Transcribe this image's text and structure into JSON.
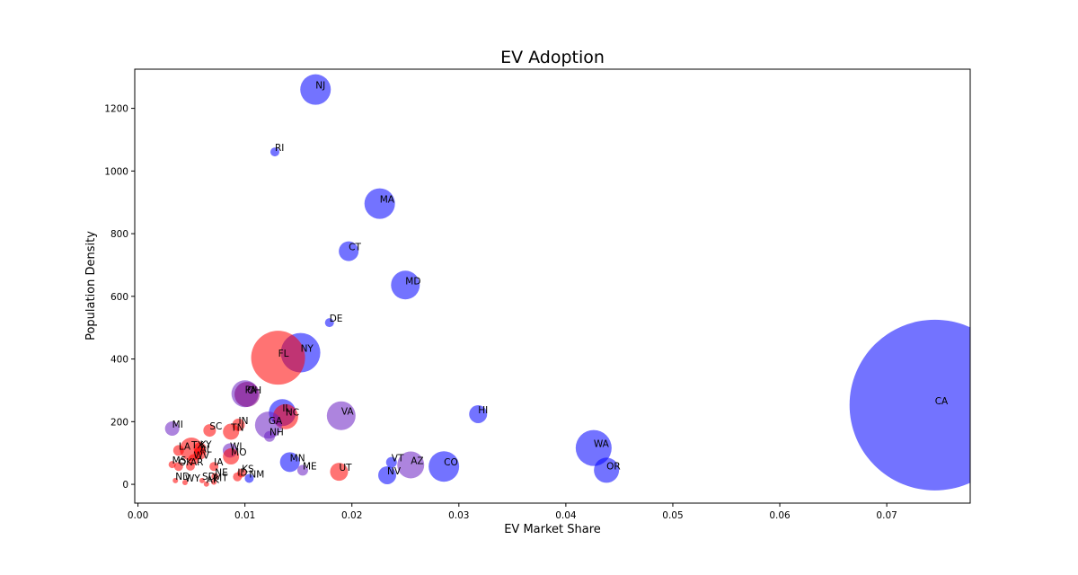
{
  "chart_data": {
    "type": "scatter",
    "title": "EV Adoption",
    "xlabel": "EV Market Share",
    "ylabel": "Population Density",
    "xlim": [
      -0.0003,
      0.0778
    ],
    "ylim": [
      -60,
      1325
    ],
    "xticks": [
      0.0,
      0.01,
      0.02,
      0.03,
      0.04,
      0.05,
      0.06,
      0.07
    ],
    "xtick_labels": [
      "0.00",
      "0.01",
      "0.02",
      "0.03",
      "0.04",
      "0.05",
      "0.06",
      "0.07"
    ],
    "yticks": [
      0,
      200,
      400,
      600,
      800,
      1000,
      1200
    ],
    "ytick_labels": [
      "0",
      "200",
      "400",
      "600",
      "800",
      "1000",
      "1200"
    ],
    "grid": false,
    "legend": "none",
    "colors": {
      "blue": "#0000ff",
      "red": "#ff0000",
      "purple": "#6a1fc2",
      "darkpurple": "#800080"
    },
    "points": [
      {
        "label": "CA",
        "x": 0.0745,
        "y": 253,
        "size": 95,
        "color": "blue"
      },
      {
        "label": "NJ",
        "x": 0.0166,
        "y": 1260,
        "size": 17,
        "color": "blue"
      },
      {
        "label": "RI",
        "x": 0.0128,
        "y": 1061,
        "size": 5,
        "color": "blue"
      },
      {
        "label": "MA",
        "x": 0.0226,
        "y": 896,
        "size": 17,
        "color": "blue"
      },
      {
        "label": "CT",
        "x": 0.0197,
        "y": 744,
        "size": 11,
        "color": "blue"
      },
      {
        "label": "MD",
        "x": 0.025,
        "y": 636,
        "size": 16,
        "color": "blue"
      },
      {
        "label": "DE",
        "x": 0.0179,
        "y": 516,
        "size": 5,
        "color": "blue"
      },
      {
        "label": "NY",
        "x": 0.0152,
        "y": 420,
        "size": 22,
        "color": "blue"
      },
      {
        "label": "FL",
        "x": 0.0131,
        "y": 404,
        "size": 30,
        "color": "red"
      },
      {
        "label": "PA",
        "x": 0.01,
        "y": 289,
        "size": 15,
        "color": "purple"
      },
      {
        "label": "OH",
        "x": 0.0102,
        "y": 287,
        "size": 14,
        "color": "darkpurple"
      },
      {
        "label": "IL",
        "x": 0.0135,
        "y": 229,
        "size": 15,
        "color": "blue"
      },
      {
        "label": "NC",
        "x": 0.0138,
        "y": 216,
        "size": 14,
        "color": "red"
      },
      {
        "label": "VA",
        "x": 0.019,
        "y": 219,
        "size": 16,
        "color": "purple"
      },
      {
        "label": "GA",
        "x": 0.0122,
        "y": 189,
        "size": 15,
        "color": "purple"
      },
      {
        "label": "HI",
        "x": 0.0318,
        "y": 224,
        "size": 10,
        "color": "blue"
      },
      {
        "label": "MI",
        "x": 0.0032,
        "y": 178,
        "size": 8,
        "color": "purple"
      },
      {
        "label": "SC",
        "x": 0.0067,
        "y": 172,
        "size": 7,
        "color": "red"
      },
      {
        "label": "TN",
        "x": 0.0087,
        "y": 168,
        "size": 9,
        "color": "red"
      },
      {
        "label": "IN",
        "x": 0.0094,
        "y": 190,
        "size": 7,
        "color": "red"
      },
      {
        "label": "NH",
        "x": 0.0123,
        "y": 153,
        "size": 6,
        "color": "purple"
      },
      {
        "label": "LA",
        "x": 0.0038,
        "y": 108,
        "size": 6,
        "color": "red"
      },
      {
        "label": "TX",
        "x": 0.005,
        "y": 112,
        "size": 13,
        "color": "red"
      },
      {
        "label": "KY",
        "x": 0.0058,
        "y": 114,
        "size": 7,
        "color": "red"
      },
      {
        "label": "AL",
        "x": 0.0058,
        "y": 99,
        "size": 7,
        "color": "red"
      },
      {
        "label": "WV",
        "x": 0.0052,
        "y": 79,
        "size": 6,
        "color": "red"
      },
      {
        "label": "WI",
        "x": 0.0086,
        "y": 108,
        "size": 8,
        "color": "purple"
      },
      {
        "label": "MO",
        "x": 0.0087,
        "y": 89,
        "size": 9,
        "color": "red"
      },
      {
        "label": "WA",
        "x": 0.0426,
        "y": 116,
        "size": 20,
        "color": "blue"
      },
      {
        "label": "MS",
        "x": 0.0032,
        "y": 63,
        "size": 4,
        "color": "red"
      },
      {
        "label": "OK",
        "x": 0.0038,
        "y": 57,
        "size": 5,
        "color": "red"
      },
      {
        "label": "AR",
        "x": 0.0049,
        "y": 58,
        "size": 5,
        "color": "red"
      },
      {
        "label": "IA",
        "x": 0.0071,
        "y": 57,
        "size": 5,
        "color": "red"
      },
      {
        "label": "MN",
        "x": 0.0142,
        "y": 71,
        "size": 11,
        "color": "blue"
      },
      {
        "label": "ME",
        "x": 0.0154,
        "y": 45,
        "size": 6,
        "color": "purple"
      },
      {
        "label": "UT",
        "x": 0.0188,
        "y": 40,
        "size": 10,
        "color": "red"
      },
      {
        "label": "VT",
        "x": 0.0237,
        "y": 70,
        "size": 6,
        "color": "blue"
      },
      {
        "label": "AZ",
        "x": 0.0255,
        "y": 62,
        "size": 15,
        "color": "purple"
      },
      {
        "label": "CO",
        "x": 0.0286,
        "y": 57,
        "size": 17,
        "color": "blue"
      },
      {
        "label": "NV",
        "x": 0.0233,
        "y": 29,
        "size": 10,
        "color": "blue"
      },
      {
        "label": "OR",
        "x": 0.0438,
        "y": 45,
        "size": 14,
        "color": "blue"
      },
      {
        "label": "ID",
        "x": 0.0093,
        "y": 24,
        "size": 5,
        "color": "red"
      },
      {
        "label": "KS",
        "x": 0.0097,
        "y": 36,
        "size": 5,
        "color": "red"
      },
      {
        "label": "NM",
        "x": 0.0104,
        "y": 19,
        "size": 5,
        "color": "blue"
      },
      {
        "label": "NE",
        "x": 0.0072,
        "y": 25,
        "size": 4,
        "color": "red"
      },
      {
        "label": "ND",
        "x": 0.0035,
        "y": 12,
        "size": 3,
        "color": "red"
      },
      {
        "label": "WY",
        "x": 0.0044,
        "y": 6,
        "size": 3,
        "color": "red"
      },
      {
        "label": "SD",
        "x": 0.006,
        "y": 12,
        "size": 3,
        "color": "red"
      },
      {
        "label": "AK",
        "x": 0.0064,
        "y": 1,
        "size": 3,
        "color": "red"
      },
      {
        "label": "MT",
        "x": 0.0071,
        "y": 7,
        "size": 3,
        "color": "red"
      }
    ]
  }
}
